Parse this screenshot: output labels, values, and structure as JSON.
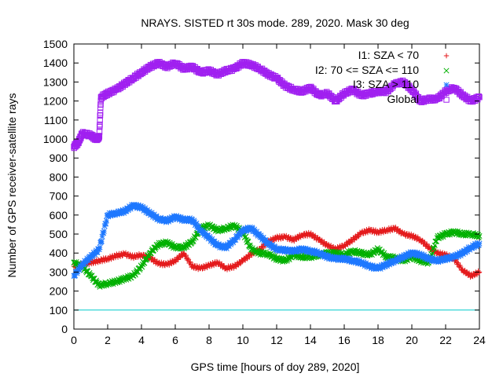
{
  "chart_data": {
    "type": "scatter",
    "title": "NRAYS. SISTED rt 30s mode. 289, 2020. Mask 30 deg",
    "xlabel": "GPS time [hours of doy 289, 2020]",
    "ylabel": "Number of GPS receiver-satellite rays",
    "xlim": [
      0,
      24
    ],
    "ylim": [
      0,
      1500
    ],
    "xticks": [
      "0",
      "2",
      "4",
      "6",
      "8",
      "10",
      "12",
      "14",
      "16",
      "18",
      "20",
      "22",
      "24"
    ],
    "yticks": [
      "0",
      "100",
      "200",
      "300",
      "400",
      "500",
      "600",
      "700",
      "800",
      "900",
      "1000",
      "1100",
      "1200",
      "1300",
      "1400",
      "1500"
    ],
    "legend_position": "top-right",
    "reference_line": {
      "value": 100,
      "color": "#00cccc"
    },
    "series": [
      {
        "name": "I1: SZA < 70",
        "marker": "+",
        "color": "#e41a1c",
        "x": [
          0,
          0.5,
          1,
          1.5,
          2,
          2.5,
          3,
          3.5,
          4,
          4.5,
          5,
          5.5,
          6,
          6.5,
          7,
          7.5,
          8,
          8.5,
          9,
          9.5,
          10,
          10.5,
          11,
          11.5,
          12,
          12.5,
          13,
          13.5,
          14,
          14.5,
          15,
          15.5,
          16,
          16.5,
          17,
          17.5,
          18,
          18.5,
          19,
          19.5,
          20,
          20.5,
          21,
          21.5,
          22,
          22.5,
          23,
          23.5,
          24
        ],
        "y": [
          330,
          340,
          350,
          360,
          370,
          385,
          395,
          380,
          390,
          375,
          345,
          340,
          360,
          400,
          330,
          320,
          335,
          350,
          320,
          330,
          360,
          395,
          420,
          460,
          480,
          485,
          470,
          495,
          500,
          470,
          440,
          420,
          440,
          470,
          505,
          520,
          510,
          520,
          530,
          500,
          490,
          470,
          430,
          400,
          390,
          370,
          310,
          280,
          300
        ]
      },
      {
        "name": "I2: 70 <= SZA <= 110",
        "marker": "x",
        "color": "#00b000",
        "x": [
          0,
          0.5,
          1,
          1.5,
          2,
          2.5,
          3,
          3.5,
          4,
          4.5,
          5,
          5.5,
          6,
          6.5,
          7,
          7.5,
          8,
          8.5,
          9,
          9.5,
          10,
          10.5,
          11,
          11.5,
          12,
          12.5,
          13,
          13.5,
          14,
          14.5,
          15,
          15.5,
          16,
          16.5,
          17,
          17.5,
          18,
          18.5,
          19,
          19.5,
          20,
          20.5,
          21,
          21.5,
          22,
          22.5,
          23,
          23.5,
          24
        ],
        "y": [
          350,
          330,
          280,
          230,
          240,
          250,
          265,
          280,
          330,
          400,
          445,
          455,
          430,
          430,
          460,
          530,
          545,
          520,
          530,
          545,
          510,
          420,
          400,
          395,
          370,
          360,
          390,
          380,
          380,
          390,
          400,
          400,
          390,
          410,
          400,
          390,
          420,
          380,
          375,
          360,
          380,
          360,
          350,
          480,
          500,
          510,
          500,
          500,
          490
        ]
      },
      {
        "name": "I3: SZA > 110",
        "marker": "*",
        "color": "#1e78ff",
        "x": [
          0,
          0.5,
          1,
          1.5,
          2,
          2.5,
          3,
          3.5,
          4,
          4.5,
          5,
          5.5,
          6,
          6.5,
          7,
          7.5,
          8,
          8.5,
          9,
          9.5,
          10,
          10.5,
          11,
          11.5,
          12,
          12.5,
          13,
          13.5,
          14,
          14.5,
          15,
          15.5,
          16,
          16.5,
          17,
          17.5,
          18,
          18.5,
          19,
          19.5,
          20,
          20.5,
          21,
          21.5,
          22,
          22.5,
          23,
          23.5,
          24
        ],
        "y": [
          280,
          340,
          380,
          420,
          600,
          610,
          620,
          650,
          640,
          610,
          580,
          570,
          590,
          575,
          575,
          520,
          480,
          440,
          430,
          470,
          520,
          530,
          490,
          450,
          420,
          415,
          410,
          420,
          410,
          400,
          380,
          370,
          370,
          360,
          350,
          330,
          320,
          340,
          360,
          380,
          400,
          390,
          370,
          360,
          370,
          380,
          400,
          430,
          450
        ]
      },
      {
        "name": "Global",
        "marker": "square",
        "color": "#a020f0",
        "x": [
          0,
          0.25,
          0.5,
          1,
          1.3,
          1.5,
          1.6,
          2,
          2.5,
          3,
          3.5,
          4,
          4.5,
          5,
          5.5,
          6,
          6.5,
          7,
          7.5,
          8,
          8.5,
          9,
          9.5,
          10,
          10.5,
          11,
          11.5,
          12,
          12.5,
          13,
          13.5,
          14,
          14.5,
          15,
          15.5,
          16,
          16.5,
          17,
          17.5,
          18,
          18.5,
          19,
          19.5,
          20,
          20.5,
          21,
          21.5,
          22,
          22.5,
          23,
          23.5,
          24
        ],
        "y": [
          960,
          980,
          1030,
          1020,
          1000,
          1010,
          1220,
          1240,
          1260,
          1290,
          1320,
          1350,
          1380,
          1400,
          1380,
          1400,
          1370,
          1380,
          1350,
          1360,
          1340,
          1360,
          1370,
          1400,
          1390,
          1370,
          1340,
          1320,
          1280,
          1260,
          1250,
          1270,
          1230,
          1240,
          1200,
          1240,
          1260,
          1230,
          1240,
          1250,
          1250,
          1290,
          1300,
          1260,
          1200,
          1210,
          1210,
          1250,
          1270,
          1230,
          1200,
          1220
        ]
      }
    ]
  }
}
